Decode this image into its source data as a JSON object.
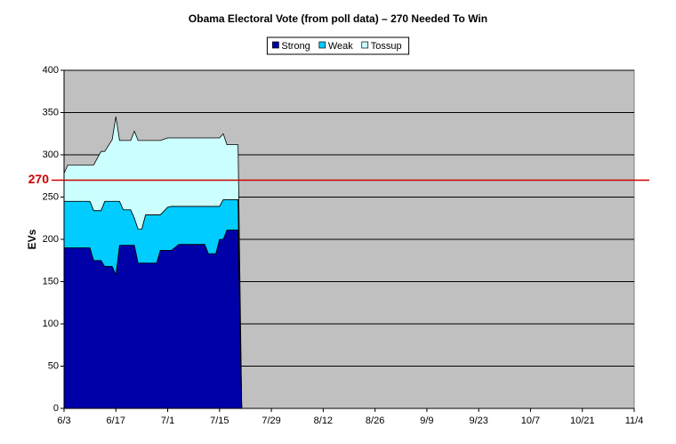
{
  "chart_data": {
    "type": "stacked_area",
    "title": "Obama Electoral Vote (from poll data) – 270 Needed To Win",
    "y_label": "EVs",
    "x": [
      "6/3",
      "6/4",
      "6/10",
      "6/11",
      "6/13",
      "6/14",
      "6/16",
      "6/17",
      "6/18",
      "6/19",
      "6/21",
      "6/22",
      "6/23",
      "6/24",
      "6/25",
      "6/28",
      "6/29",
      "7/1",
      "7/2",
      "7/4",
      "7/11",
      "7/12",
      "7/14",
      "7/15",
      "7/16",
      "7/17",
      "7/19",
      "7/20",
      "7/21"
    ],
    "series": [
      {
        "name": "Strong",
        "color": "#0000a8",
        "values": [
          190,
          190,
          190,
          175,
          175,
          168,
          168,
          158,
          193,
          193,
          193,
          193,
          172,
          172,
          172,
          172,
          187,
          187,
          187,
          194,
          194,
          183,
          183,
          200,
          200,
          211,
          211,
          211,
          0
        ]
      },
      {
        "name": "Weak",
        "color": "#00ccff",
        "values": [
          55,
          55,
          55,
          59,
          59,
          77,
          77,
          87,
          52,
          42,
          42,
          32,
          40,
          40,
          57,
          57,
          42,
          51,
          52,
          45,
          45,
          56,
          56,
          39,
          47,
          36,
          36,
          36,
          0
        ]
      },
      {
        "name": "Tossup",
        "color": "#ccffff",
        "values": [
          33,
          43,
          43,
          54,
          70,
          59,
          73,
          100,
          72,
          82,
          82,
          103,
          105,
          105,
          88,
          88,
          88,
          82,
          81,
          81,
          81,
          81,
          81,
          81,
          78,
          65,
          65,
          65,
          0
        ]
      }
    ],
    "xlim": [
      "6/3",
      "11/4"
    ],
    "xticks": [
      "6/3",
      "6/17",
      "7/1",
      "7/15",
      "7/29",
      "8/12",
      "8/26",
      "9/9",
      "9/23",
      "10/7",
      "10/21",
      "11/4"
    ],
    "ylim": [
      0,
      400
    ],
    "yticks": [
      0,
      50,
      100,
      150,
      200,
      250,
      300,
      350,
      400
    ],
    "grid": true,
    "plot_background": "#c0c0c0",
    "legend_position": "top",
    "reference_line": {
      "value": 270,
      "color": "#cc0000"
    }
  }
}
